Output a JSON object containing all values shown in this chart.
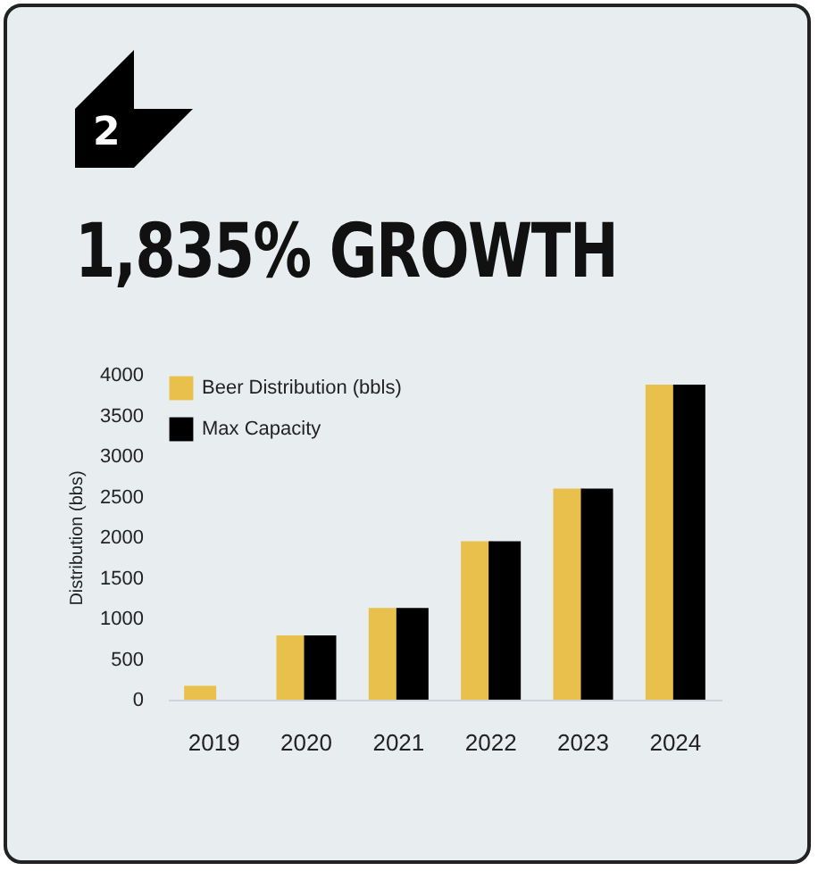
{
  "chart_data": {
    "type": "bar",
    "title": "1,835% GROWTH",
    "annotations": [
      "2"
    ],
    "ylabel": "Distribution (bbs)",
    "categories": [
      "2019",
      "2020",
      "2021",
      "2022",
      "2023",
      "2024"
    ],
    "series": [
      {
        "name": "Beer Distribution (bbls)",
        "color": "#e9c04b",
        "values": [
          170,
          790,
          1130,
          1950,
          2600,
          3880
        ]
      },
      {
        "name": "Max Capacity",
        "color": "#000000",
        "values": [
          null,
          790,
          1130,
          1950,
          2600,
          3880
        ]
      }
    ],
    "ylim": [
      0,
      4000
    ],
    "yticks": [
      0,
      500,
      1000,
      1500,
      2000,
      2500,
      3000,
      3500,
      4000
    ],
    "grid": false,
    "legend": "top left"
  }
}
